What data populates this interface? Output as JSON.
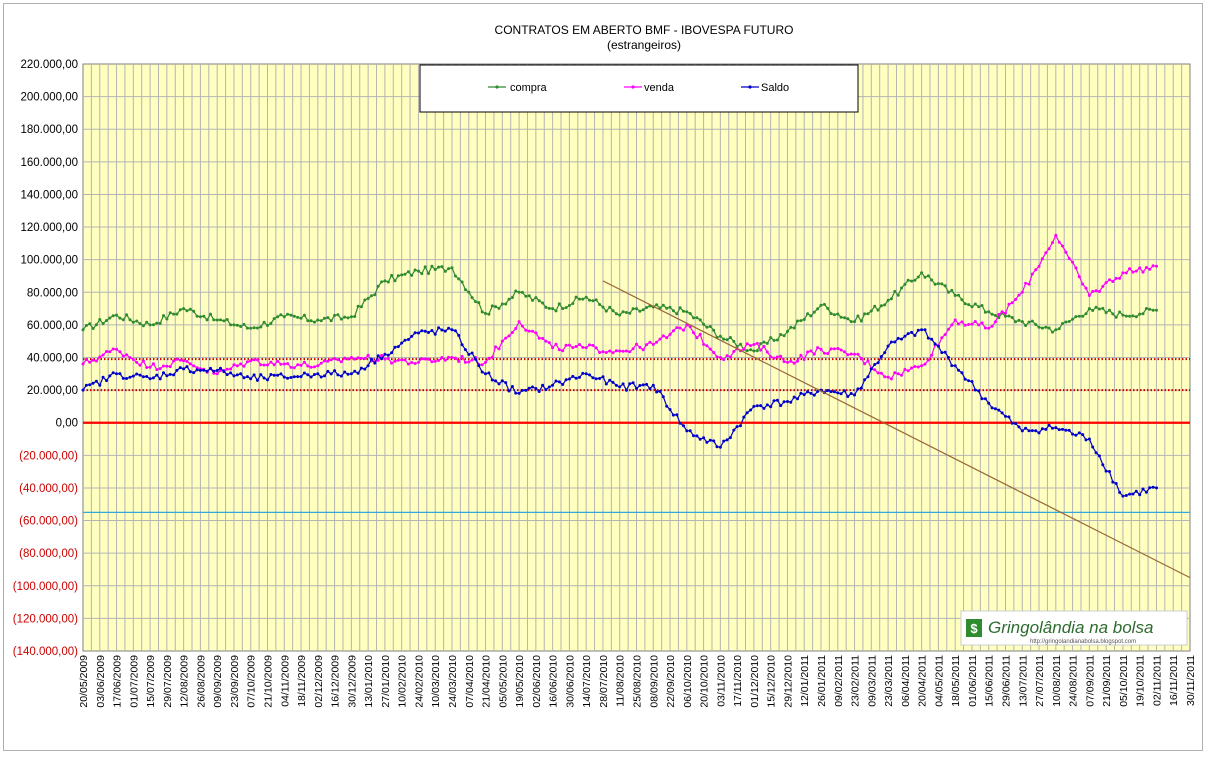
{
  "chart_data": {
    "type": "line",
    "title": "CONTRATOS EM ABERTO BMF  - IBOVESPA FUTURO",
    "subtitle": "(estrangeiros)",
    "ylim": [
      -140000,
      220000
    ],
    "y_tick_step": 20000,
    "y_tick_labels": [
      "220.000,00",
      "200.000,00",
      "180.000,00",
      "160.000,00",
      "140.000,00",
      "120.000,00",
      "100.000,00",
      "80.000,00",
      "60.000,00",
      "40.000,00",
      "20.000,00",
      "0,00",
      "(20.000,00)",
      "(40.000,00)",
      "(60.000,00)",
      "(80.000,00)",
      "(100.000,00)",
      "(120.000,00)",
      "(140.000,00)"
    ],
    "x_tick_labels": [
      "20/05/2009",
      "03/06/2009",
      "17/06/2009",
      "01/07/2009",
      "15/07/2009",
      "29/07/2009",
      "12/08/2009",
      "26/08/2009",
      "09/09/2009",
      "23/09/2009",
      "07/10/2009",
      "21/10/2009",
      "04/11/2009",
      "18/11/2009",
      "02/12/2009",
      "16/12/2009",
      "30/12/2009",
      "13/01/2010",
      "27/01/2010",
      "10/02/2010",
      "24/02/2010",
      "10/03/2010",
      "24/03/2010",
      "07/04/2010",
      "21/04/2010",
      "05/05/2010",
      "19/05/2010",
      "02/06/2010",
      "16/06/2010",
      "30/06/2010",
      "14/07/2010",
      "28/07/2010",
      "11/08/2010",
      "25/08/2010",
      "08/09/2010",
      "22/09/2010",
      "06/10/2010",
      "20/10/2010",
      "03/11/2010",
      "17/11/2010",
      "01/12/2010",
      "15/12/2010",
      "29/12/2010",
      "12/01/2011",
      "26/01/2011",
      "09/02/2011",
      "23/02/2011",
      "09/03/2011",
      "23/03/2011",
      "06/04/2011",
      "20/04/2011",
      "04/05/2011",
      "18/05/2011",
      "01/06/2011",
      "15/06/2011",
      "29/06/2011",
      "13/07/2011",
      "27/07/2011",
      "10/08/2011",
      "24/08/2011",
      "07/09/2011",
      "21/09/2011",
      "05/10/2011",
      "19/10/2011",
      "02/11/2011",
      "16/11/2011",
      "30/11/2011"
    ],
    "legend": [
      "compra",
      "venda",
      "Saldo"
    ],
    "series": [
      {
        "name": "compra",
        "color": "#2e8b2e",
        "key_x": [
          0,
          2,
          4,
          6,
          8,
          10,
          12,
          14,
          16,
          18,
          20,
          22,
          24,
          26,
          28,
          30,
          32,
          34,
          36,
          38,
          40,
          42,
          44,
          46,
          48,
          50,
          52,
          54,
          56,
          58,
          60,
          62,
          64
        ],
        "key_y": [
          57000,
          66000,
          60000,
          70000,
          63000,
          58000,
          65000,
          63000,
          65000,
          87000,
          93000,
          95000,
          67000,
          80000,
          70000,
          77000,
          66000,
          71000,
          68000,
          53000,
          44000,
          56000,
          72000,
          62000,
          75000,
          92000,
          78000,
          68000,
          62000,
          57000,
          70000,
          66000,
          69000
        ]
      },
      {
        "name": "venda",
        "color": "#ff00ff",
        "key_x": [
          0,
          2,
          4,
          6,
          8,
          10,
          12,
          14,
          16,
          18,
          20,
          22,
          24,
          26,
          28,
          30,
          32,
          34,
          36,
          38,
          40,
          42,
          44,
          46,
          48,
          50,
          52,
          54,
          56,
          58,
          60,
          62,
          64
        ],
        "key_y": [
          36000,
          45000,
          34000,
          38000,
          30000,
          38000,
          36000,
          35000,
          40000,
          39000,
          37000,
          40000,
          37000,
          62000,
          46000,
          46000,
          44000,
          48000,
          60000,
          40000,
          48000,
          37000,
          45000,
          42000,
          28000,
          35000,
          63000,
          58000,
          80000,
          115000,
          78000,
          92000,
          96000
        ]
      },
      {
        "name": "Saldo",
        "color": "#0000cc",
        "key_x": [
          0,
          2,
          4,
          6,
          8,
          10,
          12,
          14,
          16,
          18,
          20,
          22,
          24,
          26,
          28,
          30,
          32,
          34,
          36,
          38,
          40,
          42,
          44,
          46,
          48,
          50,
          52,
          54,
          56,
          58,
          60,
          62,
          64
        ],
        "key_y": [
          20000,
          30000,
          27000,
          33000,
          32000,
          27000,
          28000,
          30000,
          30000,
          42000,
          55000,
          57000,
          30000,
          18000,
          23000,
          30000,
          22000,
          23000,
          -5000,
          -15000,
          10000,
          13000,
          20000,
          17000,
          47000,
          57000,
          35000,
          12000,
          -5000,
          -3000,
          -10000,
          -45000,
          -40000
        ]
      }
    ],
    "reference_lines": [
      {
        "name": "zero-line",
        "y": 0,
        "color": "#ff0000",
        "style": "solid"
      },
      {
        "name": "upper-dotted-line",
        "y": 39000,
        "color": "#cc0000",
        "style": "dotted"
      },
      {
        "name": "lower-dotted-line",
        "y": 20000,
        "color": "#cc0000",
        "style": "dotted"
      },
      {
        "name": "cyan-line",
        "y": -55000,
        "color": "#33aadd",
        "style": "solid"
      }
    ],
    "trend_line": {
      "name": "trend-line",
      "color": "#996633",
      "from": {
        "x": 31,
        "y": 87000
      },
      "to": {
        "x": 66,
        "y": -95000
      }
    },
    "watermark": {
      "title": "Gringolândia na bolsa",
      "url": "http://gringolandianabolsa.blogspot.com"
    }
  }
}
